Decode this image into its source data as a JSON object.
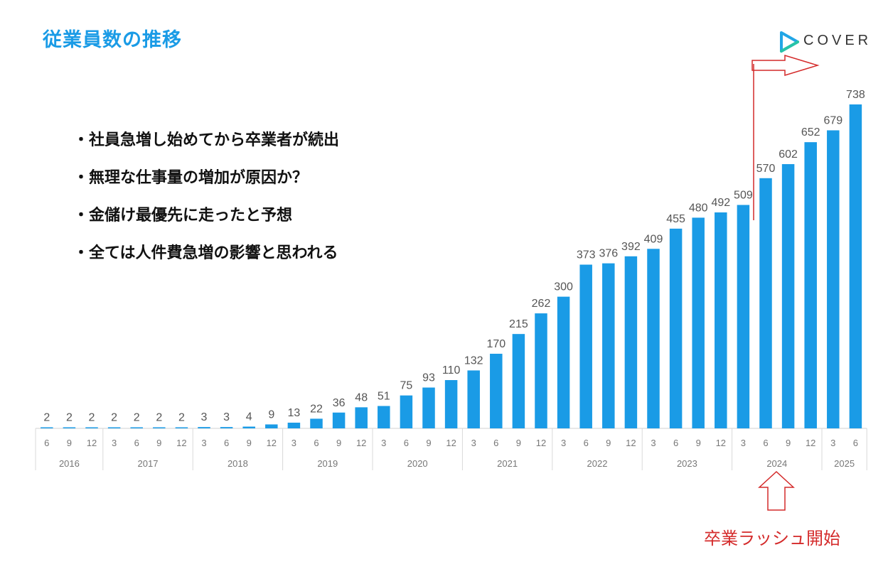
{
  "title": "従業員数の推移",
  "logo": {
    "name": "COVER",
    "icon": "play-triangle-icon",
    "color": "#22a6e6"
  },
  "bullets": [
    "・社員急増し始めてから卒業者が続出",
    "・無理な仕事量の増加が原因か？",
    "・金儲け最優先に走ったと予想",
    "・全ては人件費急増の影響と思われる"
  ],
  "annotation": {
    "text": "卒業ラッシュ開始",
    "color": "#d42a2a"
  },
  "chart_data": {
    "type": "bar",
    "color": "#1a9be6",
    "categories": [
      "6",
      "9",
      "12",
      "3",
      "6",
      "9",
      "12",
      "3",
      "6",
      "9",
      "12",
      "3",
      "6",
      "9",
      "12",
      "3",
      "6",
      "9",
      "12",
      "3",
      "6",
      "9",
      "12",
      "3",
      "6",
      "9",
      "12",
      "3",
      "6",
      "9",
      "12",
      "3",
      "6",
      "9",
      "12",
      "3",
      "6"
    ],
    "years": [
      {
        "label": "2016",
        "count": 3
      },
      {
        "label": "2017",
        "count": 4
      },
      {
        "label": "2018",
        "count": 4
      },
      {
        "label": "2019",
        "count": 4
      },
      {
        "label": "2020",
        "count": 4
      },
      {
        "label": "2021",
        "count": 4
      },
      {
        "label": "2022",
        "count": 4
      },
      {
        "label": "2023",
        "count": 4
      },
      {
        "label": "2024",
        "count": 4
      },
      {
        "label": "2025",
        "count": 2
      }
    ],
    "values": [
      2,
      2,
      2,
      2,
      2,
      2,
      2,
      3,
      3,
      4,
      9,
      13,
      22,
      36,
      48,
      51,
      75,
      93,
      110,
      132,
      170,
      215,
      262,
      300,
      373,
      376,
      392,
      409,
      455,
      480,
      492,
      509,
      570,
      602,
      652,
      679,
      738
    ],
    "ylim": [
      0,
      750
    ]
  }
}
